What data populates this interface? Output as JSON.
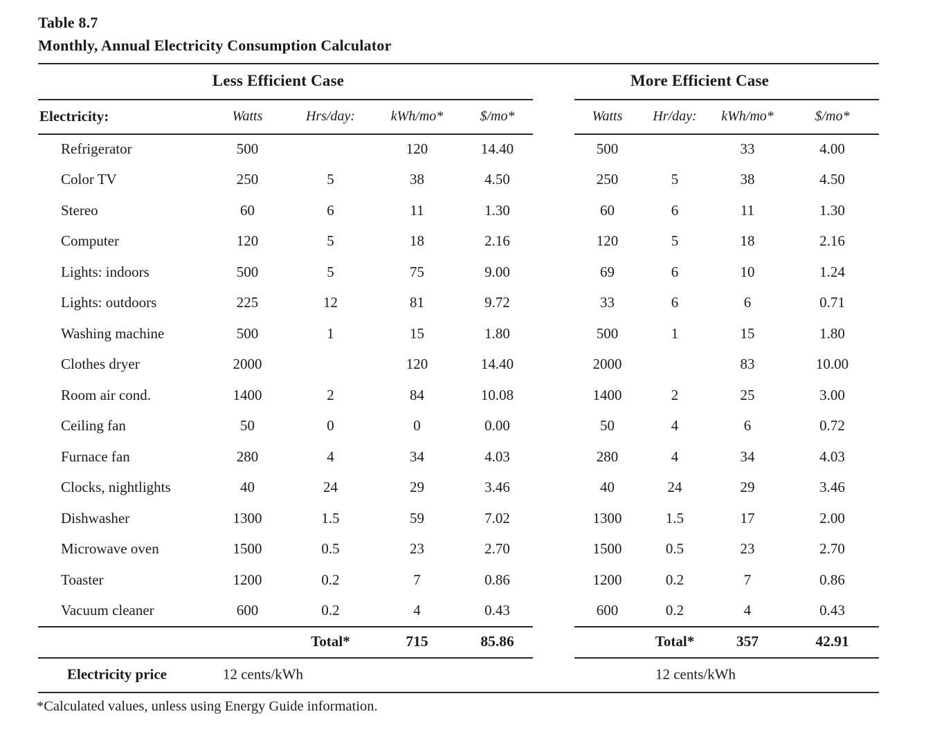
{
  "title": {
    "line1": "Table 8.7",
    "line2": "Monthly, Annual Electricity Consumption Calculator"
  },
  "sections": {
    "left": "Less Efficient Case",
    "right": "More Efficient Case"
  },
  "columns": {
    "row_header": "Electricity:",
    "left": [
      "Watts",
      "Hrs/day:",
      "kWh/mo*",
      "$/mo*"
    ],
    "right": [
      "Watts",
      "Hr/day:",
      "kWh/mo*",
      "$/mo*"
    ]
  },
  "rows": [
    {
      "label": "Refrigerator",
      "left": [
        "500",
        "",
        "120",
        "14.40"
      ],
      "right": [
        "500",
        "",
        "33",
        "4.00"
      ]
    },
    {
      "label": "Color TV",
      "left": [
        "250",
        "5",
        "38",
        "4.50"
      ],
      "right": [
        "250",
        "5",
        "38",
        "4.50"
      ]
    },
    {
      "label": "Stereo",
      "left": [
        "60",
        "6",
        "11",
        "1.30"
      ],
      "right": [
        "60",
        "6",
        "11",
        "1.30"
      ]
    },
    {
      "label": "Computer",
      "left": [
        "120",
        "5",
        "18",
        "2.16"
      ],
      "right": [
        "120",
        "5",
        "18",
        "2.16"
      ]
    },
    {
      "label": "Lights: indoors",
      "left": [
        "500",
        "5",
        "75",
        "9.00"
      ],
      "right": [
        "69",
        "6",
        "10",
        "1.24"
      ]
    },
    {
      "label": "Lights: outdoors",
      "left": [
        "225",
        "12",
        "81",
        "9.72"
      ],
      "right": [
        "33",
        "6",
        "6",
        "0.71"
      ]
    },
    {
      "label": "Washing machine",
      "left": [
        "500",
        "1",
        "15",
        "1.80"
      ],
      "right": [
        "500",
        "1",
        "15",
        "1.80"
      ]
    },
    {
      "label": "Clothes dryer",
      "left": [
        "2000",
        "",
        "120",
        "14.40"
      ],
      "right": [
        "2000",
        "",
        "83",
        "10.00"
      ]
    },
    {
      "label": "Room air cond.",
      "left": [
        "1400",
        "2",
        "84",
        "10.08"
      ],
      "right": [
        "1400",
        "2",
        "25",
        "3.00"
      ]
    },
    {
      "label": "Ceiling fan",
      "left": [
        "50",
        "0",
        "0",
        "0.00"
      ],
      "right": [
        "50",
        "4",
        "6",
        "0.72"
      ]
    },
    {
      "label": "Furnace fan",
      "left": [
        "280",
        "4",
        "34",
        "4.03"
      ],
      "right": [
        "280",
        "4",
        "34",
        "4.03"
      ]
    },
    {
      "label": "Clocks, nightlights",
      "left": [
        "40",
        "24",
        "29",
        "3.46"
      ],
      "right": [
        "40",
        "24",
        "29",
        "3.46"
      ]
    },
    {
      "label": "Dishwasher",
      "left": [
        "1300",
        "1.5",
        "59",
        "7.02"
      ],
      "right": [
        "1300",
        "1.5",
        "17",
        "2.00"
      ]
    },
    {
      "label": "Microwave oven",
      "left": [
        "1500",
        "0.5",
        "23",
        "2.70"
      ],
      "right": [
        "1500",
        "0.5",
        "23",
        "2.70"
      ]
    },
    {
      "label": "Toaster",
      "left": [
        "1200",
        "0.2",
        "7",
        "0.86"
      ],
      "right": [
        "1200",
        "0.2",
        "7",
        "0.86"
      ]
    },
    {
      "label": "Vacuum cleaner",
      "left": [
        "600",
        "0.2",
        "4",
        "0.43"
      ],
      "right": [
        "600",
        "0.2",
        "4",
        "0.43"
      ]
    }
  ],
  "totals": {
    "label": "Total*",
    "left": {
      "kwh": "715",
      "cost": "85.86"
    },
    "right": {
      "kwh": "357",
      "cost": "42.91"
    }
  },
  "price": {
    "label": "Electricity price",
    "left": "12 cents/kWh",
    "right": "12 cents/kWh"
  },
  "footnote": "*Calculated values, unless using Energy Guide information.",
  "colors": {
    "text": "#1d1b19",
    "rule": "#262626",
    "background": "#ffffff"
  }
}
